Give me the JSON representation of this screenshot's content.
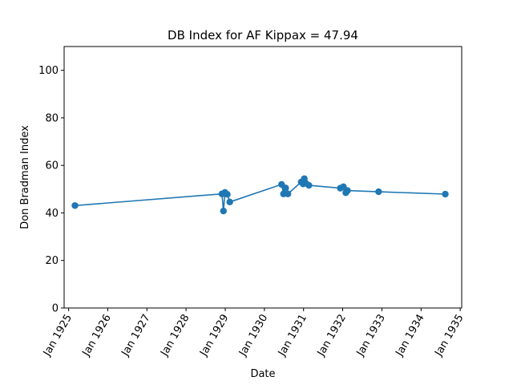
{
  "chart_data": {
    "type": "line",
    "title": "DB Index for AF Kippax = 47.94",
    "xlabel": "Date",
    "ylabel": "Don Bradman Index",
    "xlim": [
      "1924-11-20",
      "1935-01-15"
    ],
    "ylim": [
      0,
      110
    ],
    "yticks": [
      0,
      20,
      40,
      60,
      80,
      100
    ],
    "xticks": [
      {
        "date": "1925-01-01",
        "label": "Jan 1925"
      },
      {
        "date": "1926-01-01",
        "label": "Jan 1926"
      },
      {
        "date": "1927-01-01",
        "label": "Jan 1927"
      },
      {
        "date": "1928-01-01",
        "label": "Jan 1928"
      },
      {
        "date": "1929-01-01",
        "label": "Jan 1929"
      },
      {
        "date": "1930-01-01",
        "label": "Jan 1930"
      },
      {
        "date": "1931-01-01",
        "label": "Jan 1931"
      },
      {
        "date": "1932-01-01",
        "label": "Jan 1932"
      },
      {
        "date": "1933-01-01",
        "label": "Jan 1933"
      },
      {
        "date": "1934-01-01",
        "label": "Jan 1934"
      },
      {
        "date": "1935-01-01",
        "label": "Jan 1935"
      }
    ],
    "color": "#1f77b4",
    "grid": false,
    "series": [
      {
        "points": [
          {
            "x": "1925-03-01",
            "y": 43.1
          },
          {
            "x": "1928-12-01",
            "y": 48.0
          },
          {
            "x": "1928-12-15",
            "y": 40.8
          },
          {
            "x": "1928-12-29",
            "y": 48.6
          },
          {
            "x": "1929-01-20",
            "y": 47.8
          },
          {
            "x": "1929-02-12",
            "y": 44.6
          },
          {
            "x": "1930-06-10",
            "y": 52.0
          },
          {
            "x": "1930-06-28",
            "y": 48.0
          },
          {
            "x": "1930-07-18",
            "y": 50.5
          },
          {
            "x": "1930-08-08",
            "y": 48.0
          },
          {
            "x": "1930-12-10",
            "y": 53.0
          },
          {
            "x": "1930-12-28",
            "y": 52.2
          },
          {
            "x": "1931-01-08",
            "y": 54.4
          },
          {
            "x": "1931-01-22",
            "y": 52.5
          },
          {
            "x": "1931-02-20",
            "y": 51.6
          },
          {
            "x": "1931-12-10",
            "y": 50.4
          },
          {
            "x": "1932-01-08",
            "y": 51.0
          },
          {
            "x": "1932-01-30",
            "y": 48.5
          },
          {
            "x": "1932-02-15",
            "y": 49.4
          },
          {
            "x": "1932-12-01",
            "y": 48.9
          },
          {
            "x": "1934-08-15",
            "y": 47.9
          }
        ]
      }
    ]
  }
}
